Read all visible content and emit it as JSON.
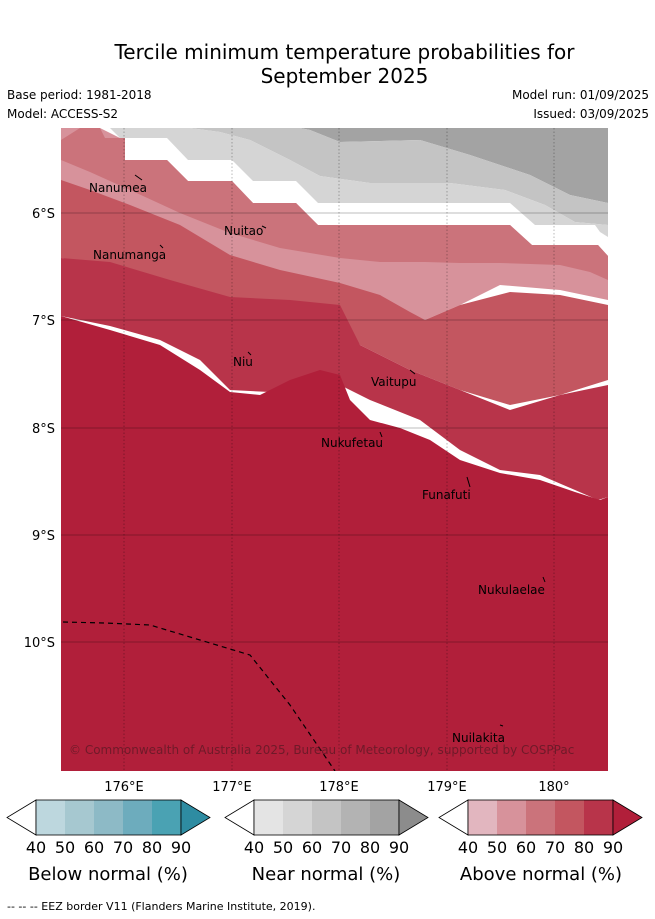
{
  "title_line1": "Tercile minimum temperature probabilities for",
  "title_line2": "September 2025",
  "base_period": "Base period: 1981-2018",
  "model": "Model: ACCESS-S2",
  "model_run": "Model run: 01/09/2025",
  "issued": "Issued: 03/09/2025",
  "map": {
    "lat_ticks": [
      "6°S",
      "7°S",
      "8°S",
      "9°S",
      "10°S"
    ],
    "lon_ticks": [
      "176°E",
      "177°E",
      "178°E",
      "179°E",
      "180°"
    ],
    "places": [
      "Nanumea",
      "Nanumanga",
      "Nuitao",
      "Niu",
      "Vaitupu",
      "Nukufetau",
      "Funafuti",
      "Nukulaelae",
      "Nuilakita"
    ],
    "copyright": "© Commonwealth of Australia 2025, Bureau of Meteorology, supported by COSPPac",
    "eez_legend": "-- -- -- EEZ border V11 (Flanders Marine Institute, 2019)."
  },
  "legend": {
    "ticks": [
      "40",
      "50",
      "60",
      "70",
      "80",
      "90"
    ],
    "below_label": "Below normal (%)",
    "near_label": "Near normal (%)",
    "above_label": "Above normal (%)",
    "below_colors": [
      "#ffffff",
      "#bdd7de",
      "#a6c8d0",
      "#8dbac6",
      "#6dacbd",
      "#4aa2b3",
      "#2e8ca2"
    ],
    "near_colors": [
      "#ffffff",
      "#e4e4e4",
      "#d5d5d5",
      "#c4c4c4",
      "#b3b3b3",
      "#a3a3a3",
      "#8c8c8c"
    ],
    "above_colors": [
      "#ffffff",
      "#e2b6bf",
      "#d7929b",
      "#cb737b",
      "#c35660",
      "#b8344a",
      "#b11f3a"
    ]
  }
}
